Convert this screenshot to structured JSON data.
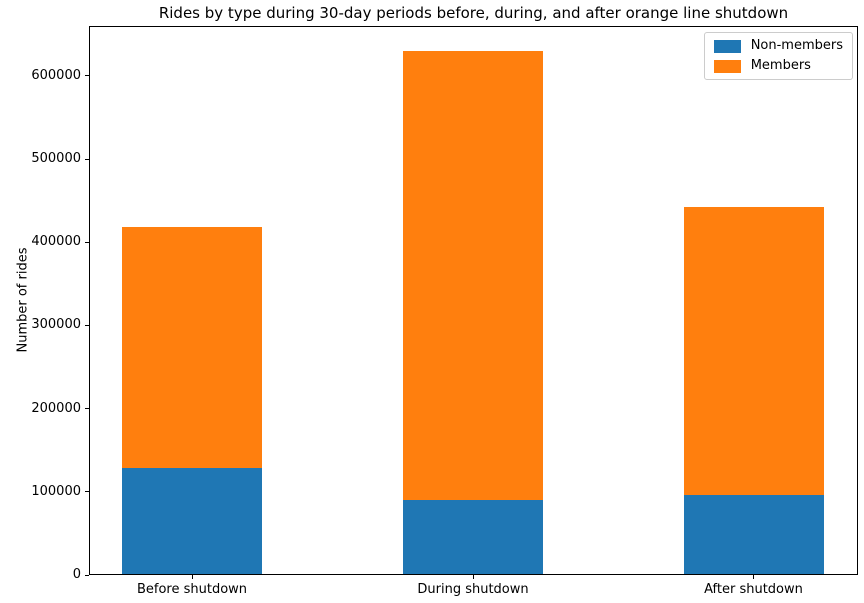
{
  "chart_data": {
    "type": "bar",
    "stacked": true,
    "title": "Rides by type during 30-day periods before, during, and after orange line shutdown",
    "xlabel": "",
    "ylabel": "Number of rides",
    "categories": [
      "Before shutdown",
      "During shutdown",
      "After shutdown"
    ],
    "series": [
      {
        "name": "Non-members",
        "color": "#1f77b4",
        "values": [
          127000,
          89000,
          95000
        ]
      },
      {
        "name": "Members",
        "color": "#ff7f0e",
        "values": [
          290000,
          540000,
          346000
        ]
      }
    ],
    "stack_totals": [
      417000,
      629000,
      441000
    ],
    "yticks": [
      0,
      100000,
      200000,
      300000,
      400000,
      500000,
      600000
    ],
    "ylim": [
      0,
      660000
    ],
    "grid": false,
    "legend_position": "upper right"
  }
}
